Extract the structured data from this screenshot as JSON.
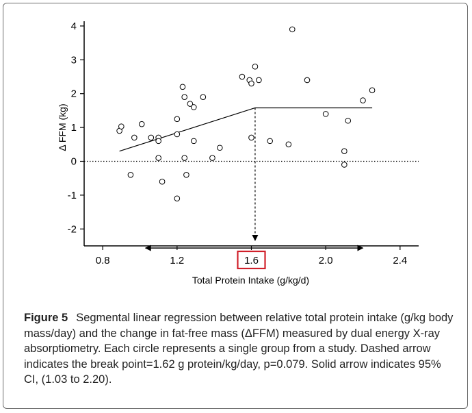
{
  "chart_data": {
    "type": "scatter",
    "xlabel": "Total Protein Intake (g/kg/d)",
    "ylabel": "Δ FFM (kg)",
    "xlim": [
      0.7,
      2.5
    ],
    "ylim": [
      -2.5,
      4.1
    ],
    "x_ticks": [
      "0.8",
      "1.2",
      "1.6",
      "2.0",
      "2.4"
    ],
    "y_ticks": [
      "4",
      "3",
      "2",
      "1",
      "0",
      "-1",
      "-2"
    ],
    "highlighted_tick": "1.6",
    "highlight_color": "#d0202a",
    "points": [
      {
        "x": 0.89,
        "y": 0.9
      },
      {
        "x": 0.9,
        "y": 1.03
      },
      {
        "x": 0.95,
        "y": -0.4
      },
      {
        "x": 0.97,
        "y": 0.7
      },
      {
        "x": 1.01,
        "y": 1.1
      },
      {
        "x": 1.06,
        "y": 0.7
      },
      {
        "x": 1.1,
        "y": 0.7
      },
      {
        "x": 1.1,
        "y": 0.6
      },
      {
        "x": 1.1,
        "y": 0.1
      },
      {
        "x": 1.12,
        "y": -0.6
      },
      {
        "x": 1.2,
        "y": 1.25
      },
      {
        "x": 1.2,
        "y": 0.8
      },
      {
        "x": 1.2,
        "y": -1.1
      },
      {
        "x": 1.23,
        "y": 2.2
      },
      {
        "x": 1.24,
        "y": 1.9
      },
      {
        "x": 1.24,
        "y": 0.1
      },
      {
        "x": 1.25,
        "y": -0.4
      },
      {
        "x": 1.27,
        "y": 1.7
      },
      {
        "x": 1.29,
        "y": 1.6
      },
      {
        "x": 1.29,
        "y": 0.6
      },
      {
        "x": 1.34,
        "y": 1.9
      },
      {
        "x": 1.39,
        "y": 0.1
      },
      {
        "x": 1.43,
        "y": 0.4
      },
      {
        "x": 1.55,
        "y": 2.5
      },
      {
        "x": 1.59,
        "y": 2.4
      },
      {
        "x": 1.6,
        "y": 2.3
      },
      {
        "x": 1.6,
        "y": 0.7
      },
      {
        "x": 1.62,
        "y": 2.8
      },
      {
        "x": 1.64,
        "y": 2.4
      },
      {
        "x": 1.7,
        "y": 0.6
      },
      {
        "x": 1.8,
        "y": 0.5
      },
      {
        "x": 1.82,
        "y": 3.9
      },
      {
        "x": 1.9,
        "y": 2.4
      },
      {
        "x": 2.0,
        "y": 1.4
      },
      {
        "x": 2.1,
        "y": 0.3
      },
      {
        "x": 2.1,
        "y": -0.1
      },
      {
        "x": 2.12,
        "y": 1.2
      },
      {
        "x": 2.2,
        "y": 1.8
      },
      {
        "x": 2.25,
        "y": 2.1
      }
    ],
    "regression": [
      {
        "x": 0.89,
        "y": 0.3
      },
      {
        "x": 1.62,
        "y": 1.58
      },
      {
        "x": 2.25,
        "y": 1.58
      }
    ],
    "break_point": {
      "x": 1.62,
      "y": 1.58
    },
    "ci": [
      1.03,
      2.2
    ],
    "ci_arrow_y": -2.3,
    "zero_line": 0
  },
  "caption": {
    "label": "Figure 5",
    "text": "Segmental linear regression between relative total protein intake (g/kg body mass/day) and the change in fat-free mass (ΔFFM) measured by dual energy X-ray absorptiometry. Each circle represents a single group from a study. Dashed arrow indicates the break point=1.62 g protein/kg/day, p=0.079. Solid arrow indicates 95% CI, (1.03 to 2.20)."
  }
}
